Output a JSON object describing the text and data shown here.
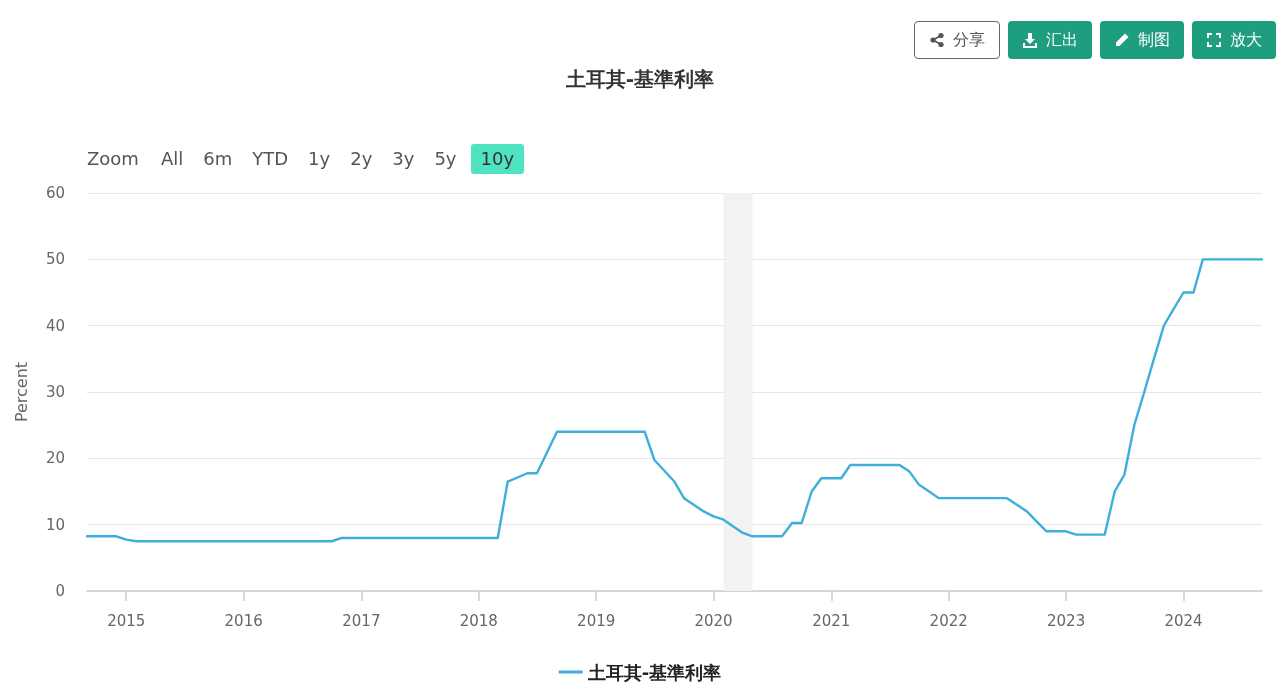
{
  "chart_data": {
    "type": "line",
    "title": "土耳其-基準利率",
    "ylabel": "Percent",
    "annotations": [
      "分享",
      "汇出",
      "制图",
      "放大",
      "Zoom",
      "All",
      "6m",
      "YTD",
      "1y",
      "2y",
      "3y",
      "5y",
      "10y"
    ],
    "x": [
      "2014-09",
      "2014-12",
      "2015-01",
      "2015-02",
      "2016-10",
      "2016-11",
      "2018-03",
      "2018-04",
      "2018-06",
      "2018-07",
      "2018-09",
      "2019-06",
      "2019-07",
      "2019-09",
      "2019-10",
      "2019-12",
      "2020-01",
      "2020-02",
      "2020-03",
      "2020-04",
      "2020-05",
      "2020-08",
      "2020-09",
      "2020-10",
      "2020-11",
      "2020-12",
      "2021-02",
      "2021-03",
      "2021-08",
      "2021-09",
      "2021-10",
      "2021-11",
      "2021-12",
      "2022-07",
      "2022-08",
      "2022-09",
      "2022-10",
      "2022-11",
      "2023-01",
      "2023-02",
      "2023-05",
      "2023-06",
      "2023-07",
      "2023-08",
      "2023-09",
      "2023-10",
      "2023-11",
      "2023-12",
      "2024-01",
      "2024-02",
      "2024-03",
      "2024-09"
    ],
    "series": [
      {
        "name": "土耳其-基準利率",
        "color": "#3eaedb",
        "values": [
          8.25,
          8.25,
          7.75,
          7.5,
          7.5,
          8,
          8,
          16.5,
          17.75,
          17.75,
          24,
          24,
          19.75,
          16.5,
          14,
          12,
          11.25,
          10.75,
          9.75,
          8.75,
          8.25,
          8.25,
          10.25,
          10.25,
          15,
          17,
          17,
          19,
          19,
          18,
          16,
          15,
          14,
          14,
          13,
          12,
          10.5,
          9,
          9,
          8.5,
          8.5,
          15,
          17.5,
          25,
          30,
          35,
          40,
          42.5,
          45,
          45,
          50,
          50
        ]
      }
    ],
    "xlim": [
      "2014-09-01",
      "2024-09-01"
    ],
    "xticks": [
      "2015",
      "2016",
      "2017",
      "2018",
      "2019",
      "2020",
      "2021",
      "2022",
      "2023",
      "2024"
    ],
    "ylim": [
      0,
      60
    ],
    "yticks": [
      0,
      10,
      20,
      30,
      40,
      50,
      60
    ],
    "bands": [
      {
        "axis": "x",
        "from": "2020-02",
        "to": "2020-05",
        "color": "#f2f2f2"
      }
    ],
    "grid": "y",
    "legend": "bottom",
    "marker": "none",
    "line_style": "solid"
  }
}
